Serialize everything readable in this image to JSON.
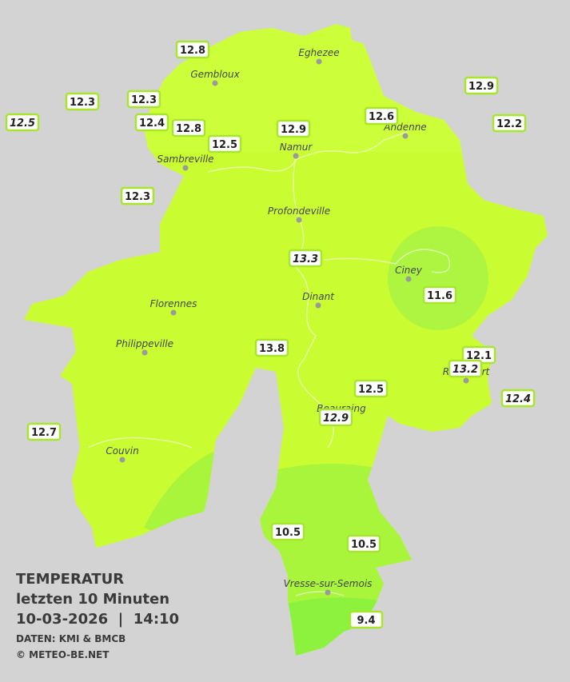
{
  "header": {
    "title": "TEMPERATUR",
    "subtitle": "letzten 10 Minuten",
    "timestamp": "10-03-2026  |  14:10",
    "source": "DATEN: KMI & BMCB",
    "copyright": "© METEO-BE.NET"
  },
  "cities": [
    {
      "label": "Eghezee"
    },
    {
      "label": "Gembloux"
    },
    {
      "label": "Andenne"
    },
    {
      "label": "Namur"
    },
    {
      "label": "Sambreville"
    },
    {
      "label": "Profondeville"
    },
    {
      "label": "Ciney"
    },
    {
      "label": "Dinant"
    },
    {
      "label": "Florennes"
    },
    {
      "label": "Philippeville"
    },
    {
      "label": "Rochefort"
    },
    {
      "label": "Beauraing"
    },
    {
      "label": "Couvin"
    },
    {
      "label": "Vresse-sur-Semois"
    }
  ],
  "stations": [
    {
      "value": 12.8
    },
    {
      "value": 12.3
    },
    {
      "value": 12.3
    },
    {
      "value": 12.5,
      "italic": true
    },
    {
      "value": 12.4
    },
    {
      "value": 12.8
    },
    {
      "value": 12.5
    },
    {
      "value": 12.9
    },
    {
      "value": 12.6
    },
    {
      "value": 12.9
    },
    {
      "value": 12.2
    },
    {
      "value": 12.3
    },
    {
      "value": 13.3,
      "italic": true
    },
    {
      "value": 11.6
    },
    {
      "value": 13.8
    },
    {
      "value": 12.1
    },
    {
      "value": 13.2,
      "italic": true
    },
    {
      "value": 12.4,
      "italic": true
    },
    {
      "value": 12.5
    },
    {
      "value": 12.9,
      "italic": true
    },
    {
      "value": 12.7
    },
    {
      "value": 10.5
    },
    {
      "value": 10.5
    },
    {
      "value": 9.4
    }
  ]
}
